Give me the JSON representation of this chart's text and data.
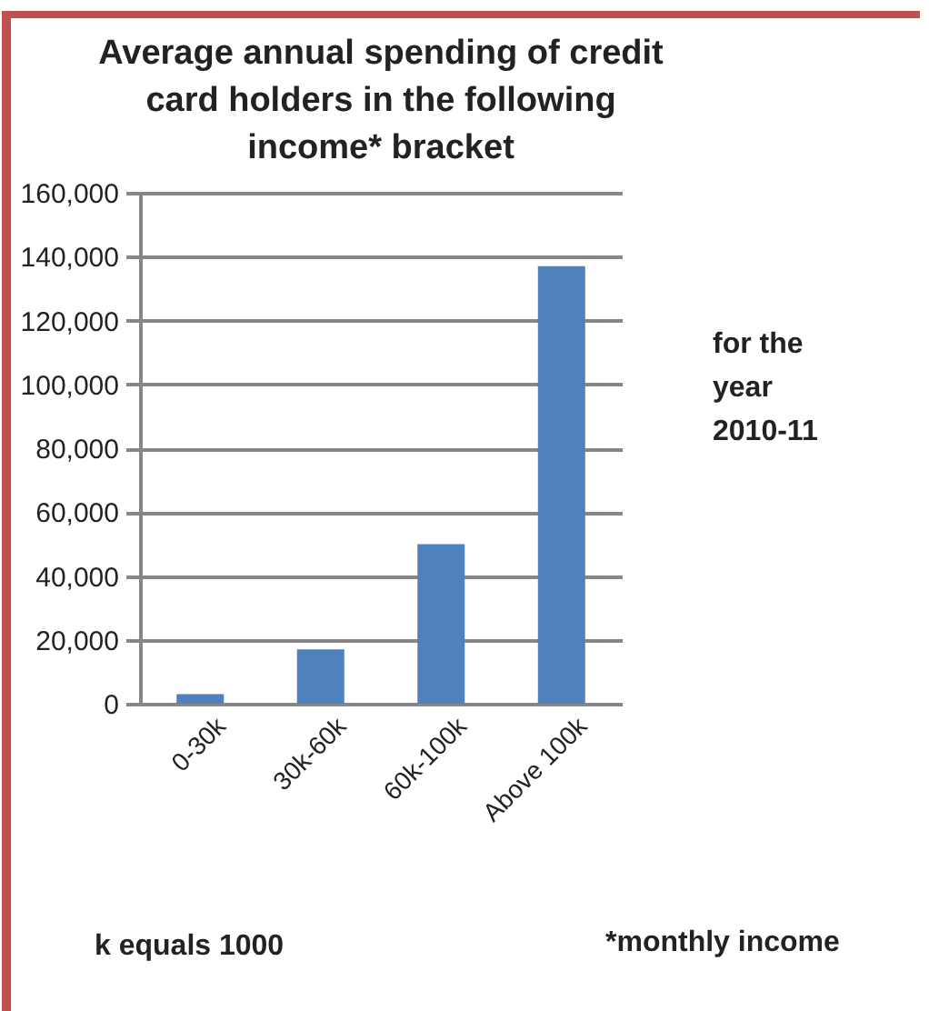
{
  "chart_data": {
    "type": "bar",
    "title": "Average annual spending of credit card holders in the following income* bracket",
    "categories": [
      "0-30k",
      "30k-60k",
      "60k-100k",
      "Above 100k"
    ],
    "values": [
      3000,
      17000,
      50000,
      137000
    ],
    "color": "#4f81bd",
    "ylim": [
      0,
      160000
    ],
    "yticks": [
      0,
      {
        "value": 20000,
        "label": "20,000"
      },
      {
        "value": 40000,
        "label": "40,000"
      },
      {
        "value": 60000,
        "label": "60,000"
      },
      {
        "value": 80000,
        "label": "80,000"
      },
      {
        "value": 100000,
        "label": "100,000"
      },
      {
        "value": 120000,
        "label": "120,000"
      },
      {
        "value": 140000,
        "label": "140,000"
      },
      {
        "value": 160000,
        "label": "160,000"
      }
    ],
    "grid": "y",
    "annotations": [
      "for the year 2010-11",
      "k equals 1000",
      "*monthly income"
    ]
  }
}
